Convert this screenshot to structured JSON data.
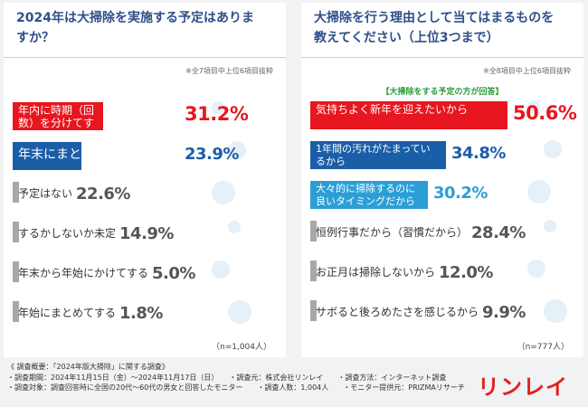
{
  "left": {
    "question": "2024年は大掃除を実施する予定はありますか？",
    "note": "※全7項目中上位6項目抜粋",
    "sample": "（n=1,004人）"
  },
  "right": {
    "question": "大掃除を行う理由として当てはまるものを教えてください（上位3つまで）",
    "note": "※全8項目中上位6項目抜粋",
    "tag": "【大掃除をする予定の方が回答】",
    "sample": "（n=777人）"
  },
  "chart_data": [
    {
      "type": "bar",
      "title": "2024年は大掃除を実施する予定はありますか？",
      "unit": "%",
      "categories": [
        "年内に時期（回数）を分けてする",
        "年末にまとめてする",
        "予定はない",
        "するかしないか未定",
        "年末から年始にかけてする",
        "年始にまとめてする"
      ],
      "values": [
        31.2,
        23.9,
        22.6,
        14.9,
        5.0,
        1.8
      ],
      "labels": [
        "31.2%",
        "23.9%",
        "22.6%",
        "14.9%",
        "5.0%",
        "1.8%"
      ],
      "colors": [
        "#e8161f",
        "#1b5ea8",
        "#a8a8a8",
        "#a8a8a8",
        "#a8a8a8",
        "#a8a8a8"
      ],
      "text_colors": [
        "#e8161f",
        "#1b5ea8",
        "#555555",
        "#555555",
        "#555555",
        "#555555"
      ]
    },
    {
      "type": "bar",
      "title": "大掃除を行う理由として当てはまるものを教えてください（上位3つまで）",
      "unit": "%",
      "categories": [
        "気持ちよく新年を迎えたいから",
        "1年間の汚れがたまっているから",
        "大々的に掃除するのに良いタイミングだから",
        "恒例行事だから（習慣だから）",
        "お正月は掃除しないから",
        "サボると後ろめたさを感じるから"
      ],
      "values": [
        50.6,
        34.8,
        30.2,
        28.4,
        12.0,
        9.9
      ],
      "labels": [
        "50.6%",
        "34.8%",
        "30.2%",
        "28.4%",
        "12.0%",
        "9.9%"
      ],
      "colors": [
        "#e8161f",
        "#1b5ea8",
        "#2a9fd6",
        "#a8a8a8",
        "#a8a8a8",
        "#a8a8a8"
      ],
      "text_colors": [
        "#e8161f",
        "#1b5ea8",
        "#2a9fd6",
        "#555555",
        "#555555",
        "#555555"
      ]
    }
  ],
  "footer": {
    "lines": [
      "《 調査概要：「2024年版大掃除」に関する調査》",
      "・調査期間：2024年11月15日（金）～2024年11月17日（日）　　・調査元：株式会社リンレイ　　・調査方法：インターネット調査",
      "・調査対象：調査回答時に全国の20代～60代の男女と回答したモニター　　・調査人数：1,004人　　・モニター提供元：PRIZMAリサーチ"
    ],
    "logo": "リンレイ"
  }
}
